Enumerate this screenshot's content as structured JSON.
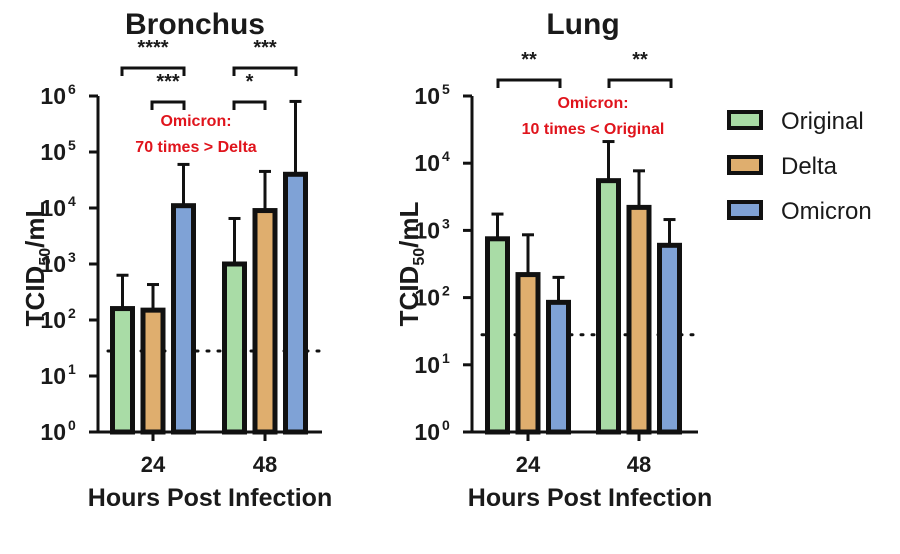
{
  "legend": [
    {
      "label": "Original",
      "color": "#a9dca6"
    },
    {
      "label": "Delta",
      "color": "#dfae6e"
    },
    {
      "label": "Omicron",
      "color": "#7fa2d6"
    }
  ],
  "chart_data": [
    {
      "type": "bar",
      "title": "Bronchus",
      "xlabel": "Hours Post Infection",
      "ylabel": "TCID50/mL",
      "yscale": "log",
      "ylim": [
        1,
        1000000
      ],
      "yticks": [
        "10^0",
        "10^1",
        "10^2",
        "10^3",
        "10^4",
        "10^5",
        "10^6"
      ],
      "categories": [
        "24",
        "48"
      ],
      "series": [
        {
          "name": "Original",
          "values": [
            160,
            1000
          ],
          "error_upper": [
            630,
            6500
          ]
        },
        {
          "name": "Delta",
          "values": [
            150,
            9000
          ],
          "error_upper": [
            430,
            45000
          ]
        },
        {
          "name": "Omicron",
          "values": [
            11000,
            40000
          ],
          "error_upper": [
            60000,
            800000
          ]
        }
      ],
      "detection_limit": 28,
      "significance": [
        {
          "group": "24",
          "pair": [
            "Original",
            "Omicron"
          ],
          "label": "****"
        },
        {
          "group": "24",
          "pair": [
            "Delta",
            "Omicron"
          ],
          "label": "***"
        },
        {
          "group": "48",
          "pair": [
            "Original",
            "Omicron"
          ],
          "label": "***"
        },
        {
          "group": "48",
          "pair": [
            "Original",
            "Delta"
          ],
          "label": "*"
        }
      ],
      "annotation": [
        "Omicron:",
        "70 times > Delta"
      ]
    },
    {
      "type": "bar",
      "title": "Lung",
      "xlabel": "Hours Post Infection",
      "ylabel": "TCID50/mL",
      "yscale": "log",
      "ylim": [
        1,
        100000
      ],
      "yticks": [
        "10^0",
        "10^1",
        "10^2",
        "10^3",
        "10^4",
        "10^5"
      ],
      "categories": [
        "24",
        "48"
      ],
      "series": [
        {
          "name": "Original",
          "values": [
            750,
            5500
          ],
          "error_upper": [
            1750,
            21000
          ]
        },
        {
          "name": "Delta",
          "values": [
            220,
            2200
          ],
          "error_upper": [
            860,
            7700
          ]
        },
        {
          "name": "Omicron",
          "values": [
            85,
            600
          ],
          "error_upper": [
            200,
            1450
          ]
        }
      ],
      "detection_limit": 28,
      "significance": [
        {
          "group": "24",
          "pair": [
            "Original",
            "Omicron"
          ],
          "label": "**"
        },
        {
          "group": "48",
          "pair": [
            "Original",
            "Omicron"
          ],
          "label": "**"
        }
      ],
      "annotation": [
        "Omicron:",
        "10 times < Original"
      ]
    }
  ]
}
